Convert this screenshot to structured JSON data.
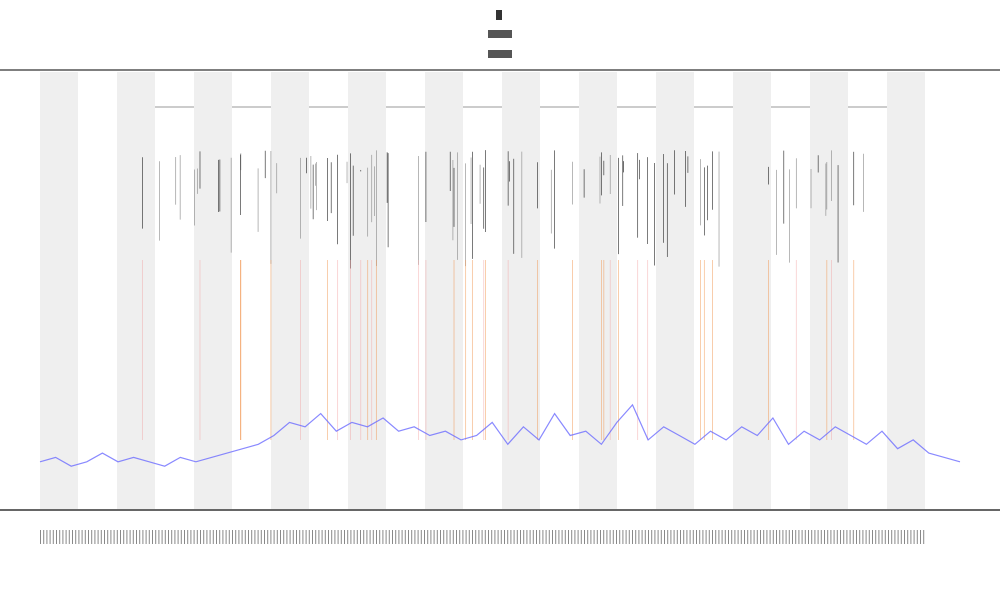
{
  "chart_data": {
    "type": "line",
    "color": "#6b6bff",
    "ylim": [
      0,
      100
    ],
    "values": [
      11,
      12,
      10,
      11,
      13,
      11,
      12,
      11,
      10,
      12,
      11,
      12,
      13,
      14,
      15,
      17,
      20,
      19,
      22,
      18,
      20,
      19,
      21,
      18,
      19,
      17,
      18,
      16,
      17,
      20,
      15,
      19,
      16,
      22,
      17,
      18,
      15,
      20,
      24,
      16,
      19,
      17,
      15,
      18,
      16,
      19,
      17,
      21,
      15,
      18,
      16,
      19,
      17,
      15,
      18,
      14,
      16,
      13,
      12,
      11
    ]
  }
}
